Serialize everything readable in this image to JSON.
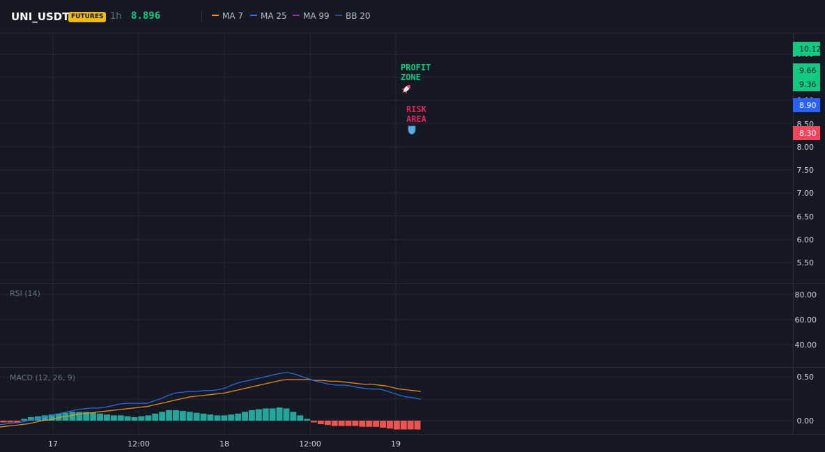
{
  "header": {
    "symbol": "UNI_USDT",
    "badge": "FUTURES",
    "timeframe": "1h",
    "last_price": "8.896",
    "legend": [
      {
        "label": "MA 7",
        "color": "#f7931a"
      },
      {
        "label": "MA 25",
        "color": "#2f6fec"
      },
      {
        "label": "MA 99",
        "color": "#9c27b0"
      },
      {
        "label": "BB 20",
        "color": "#2b4aa0"
      }
    ]
  },
  "main_axis": {
    "ticks": [
      "5.50",
      "6.00",
      "6.50",
      "7.00",
      "7.50",
      "8.00",
      "8.50",
      "9.00",
      "10.00"
    ],
    "price_tags": [
      {
        "value": "10.12",
        "color": "#0ecb81",
        "text_color": "#151924"
      },
      {
        "value": "9.66",
        "color": "#0ecb81",
        "text_color": "#151924"
      },
      {
        "value": "9.36",
        "color": "#0ecb81",
        "text_color": "#151924"
      },
      {
        "value": "8.90",
        "color": "#2962ff",
        "text_color": "#ffffff"
      },
      {
        "value": "8.30",
        "color": "#f6465d",
        "text_color": "#ffffff"
      }
    ]
  },
  "annotations": {
    "profit": {
      "line1": "PROFIT",
      "line2": "ZONE",
      "color": "#0ecb81",
      "icon": "rocket-icon"
    },
    "risk": {
      "line1": "RISK",
      "line2": "AREA",
      "color": "#e0245e",
      "icon": "shield-icon"
    }
  },
  "rsi": {
    "title": "RSI (14)",
    "ticks": [
      "80.00",
      "60.00",
      "40.00"
    ]
  },
  "macd": {
    "title": "MACD (12, 26, 9)",
    "ticks": [
      "0.50",
      "0.00"
    ],
    "macd_color": "#2f6fec",
    "signal_color": "#f7931a",
    "hist_pos_color": "#26a69a",
    "hist_neg_color": "#ef5350",
    "macd_line": [
      -0.05,
      -0.04,
      -0.03,
      -0.02,
      0.0,
      0.02,
      0.04,
      0.06,
      0.08,
      0.1,
      0.12,
      0.14,
      0.15,
      0.16,
      0.16,
      0.17,
      0.19,
      0.21,
      0.22,
      0.22,
      0.22,
      0.22,
      0.25,
      0.28,
      0.32,
      0.35,
      0.36,
      0.37,
      0.37,
      0.38,
      0.38,
      0.39,
      0.41,
      0.45,
      0.48,
      0.5,
      0.52,
      0.54,
      0.56,
      0.58,
      0.6,
      0.61,
      0.59,
      0.56,
      0.53,
      0.5,
      0.48,
      0.46,
      0.45,
      0.45,
      0.44,
      0.42,
      0.41,
      0.4,
      0.4,
      0.38,
      0.35,
      0.32,
      0.3,
      0.29,
      0.27
    ],
    "signal_line": [
      -0.08,
      -0.07,
      -0.06,
      -0.05,
      -0.04,
      -0.02,
      0.0,
      0.01,
      0.03,
      0.05,
      0.06,
      0.08,
      0.09,
      0.1,
      0.11,
      0.12,
      0.13,
      0.14,
      0.15,
      0.16,
      0.17,
      0.18,
      0.2,
      0.22,
      0.24,
      0.26,
      0.28,
      0.3,
      0.31,
      0.32,
      0.33,
      0.34,
      0.35,
      0.37,
      0.39,
      0.41,
      0.43,
      0.45,
      0.47,
      0.49,
      0.51,
      0.52,
      0.52,
      0.52,
      0.52,
      0.51,
      0.51,
      0.5,
      0.5,
      0.49,
      0.48,
      0.47,
      0.46,
      0.46,
      0.45,
      0.44,
      0.42,
      0.4,
      0.39,
      0.38,
      0.37
    ],
    "histogram": [
      -0.02,
      -0.02,
      -0.02,
      0.02,
      0.04,
      0.05,
      0.06,
      0.07,
      0.08,
      0.09,
      0.1,
      0.1,
      0.1,
      0.09,
      0.08,
      0.07,
      0.06,
      0.06,
      0.05,
      0.04,
      0.05,
      0.06,
      0.08,
      0.1,
      0.12,
      0.12,
      0.11,
      0.1,
      0.09,
      0.08,
      0.07,
      0.06,
      0.06,
      0.07,
      0.08,
      0.1,
      0.12,
      0.13,
      0.14,
      0.14,
      0.15,
      0.14,
      0.1,
      0.06,
      0.02,
      -0.02,
      -0.04,
      -0.05,
      -0.06,
      -0.06,
      -0.06,
      -0.06,
      -0.07,
      -0.07,
      -0.07,
      -0.08,
      -0.09,
      -0.1,
      -0.1,
      -0.1,
      -0.1
    ]
  },
  "time_axis": [
    "17",
    "12:00",
    "18",
    "12:00",
    "19"
  ]
}
